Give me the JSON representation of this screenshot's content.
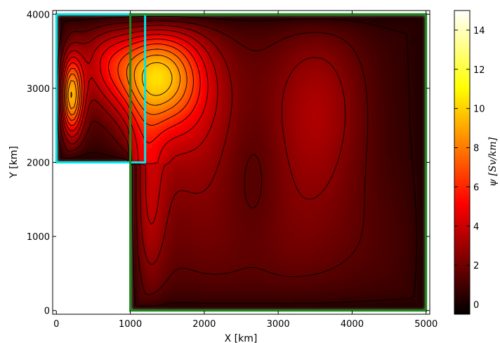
{
  "chart_data": {
    "type": "heatmap",
    "title": "",
    "xlabel": "X [km]",
    "ylabel": "Y [km]",
    "colorbar_label": "ψ [Sv/km]",
    "colormap": "hot",
    "xlim": [
      -50,
      5050
    ],
    "ylim": [
      -50,
      4050
    ],
    "x_ticks": [
      0,
      1000,
      2000,
      3000,
      4000,
      5000
    ],
    "y_ticks": [
      0,
      1000,
      2000,
      3000,
      4000
    ],
    "colorbar_range": [
      -0.5,
      15
    ],
    "colorbar_ticks": [
      0,
      2,
      4,
      6,
      8,
      10,
      12,
      14
    ],
    "domain_polygon_km": [
      [
        0,
        2000
      ],
      [
        1000,
        2000
      ],
      [
        1000,
        0
      ],
      [
        5000,
        0
      ],
      [
        5000,
        4000
      ],
      [
        0,
        4000
      ]
    ],
    "regions": [
      {
        "color": "#00e5e5",
        "x_range": [
          0,
          1200
        ],
        "y_range": [
          2000,
          4000
        ]
      },
      {
        "color": "#1a8a1a",
        "x_range": [
          1000,
          5000
        ],
        "y_range": [
          0,
          4000
        ]
      }
    ],
    "field_extrema": [
      {
        "x": 170,
        "y": 2900,
        "value": 14.5
      },
      {
        "x": 1380,
        "y": 3200,
        "value": 9
      },
      {
        "x": 700,
        "y": 3350,
        "value": 5.5
      },
      {
        "x": 3550,
        "y": 2750,
        "value": 2.5
      },
      {
        "x": 2650,
        "y": 1800,
        "value": 1
      }
    ]
  }
}
